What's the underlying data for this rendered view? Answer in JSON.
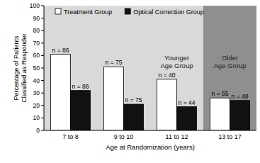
{
  "chart_data": {
    "type": "bar",
    "categories": [
      "7 to 8",
      "9 to 10",
      "11 to 12",
      "13 to 17"
    ],
    "series": [
      {
        "name": "Treatment Group",
        "color": "#ffffff",
        "values": [
          61,
          51,
          41,
          26
        ],
        "n_labels": [
          "n = 86",
          "n = 75",
          "n = 40",
          "n = 55"
        ]
      },
      {
        "name": "Optical Correction Group",
        "color": "#111111",
        "values": [
          32,
          21,
          19,
          24
        ],
        "n_labels": [
          "n = 86",
          "n = 75",
          "n = 44",
          "n = 48"
        ]
      }
    ],
    "xlabel": "Age at Randomization (years)",
    "ylabel": "Percentage of Patients Classified as Responder",
    "ylim": [
      0,
      100
    ],
    "yticks": [
      0,
      10,
      20,
      30,
      40,
      50,
      60,
      70,
      80,
      90,
      100
    ],
    "annotations": [
      {
        "text": "Younger Age Group",
        "from": "7 to 8",
        "to": "11 to 12",
        "color": "#d9d9d9"
      },
      {
        "text": "Older Age Group",
        "from": "13 to 17",
        "to": "13 to 17",
        "color": "#8f8f8f"
      }
    ],
    "legend": "top",
    "grid": false
  }
}
